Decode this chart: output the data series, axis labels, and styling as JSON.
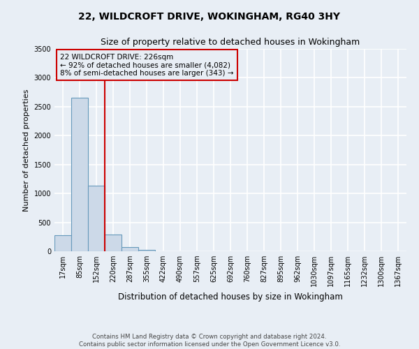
{
  "title": "22, WILDCROFT DRIVE, WOKINGHAM, RG40 3HY",
  "subtitle": "Size of property relative to detached houses in Wokingham",
  "bar_labels": [
    "17sqm",
    "85sqm",
    "152sqm",
    "220sqm",
    "287sqm",
    "355sqm",
    "422sqm",
    "490sqm",
    "557sqm",
    "625sqm",
    "692sqm",
    "760sqm",
    "827sqm",
    "895sqm",
    "962sqm",
    "1030sqm",
    "1097sqm",
    "1165sqm",
    "1232sqm",
    "1300sqm",
    "1367sqm"
  ],
  "bar_heights": [
    280,
    2650,
    1140,
    285,
    75,
    25,
    0,
    0,
    0,
    0,
    0,
    0,
    0,
    0,
    0,
    0,
    0,
    0,
    0,
    0,
    0
  ],
  "bar_color": "#ccd9e8",
  "bar_edge_color": "#6699bb",
  "background_color": "#e8eef5",
  "grid_color": "#ffffff",
  "ylabel": "Number of detached properties",
  "xlabel": "Distribution of detached houses by size in Wokingham",
  "ylim": [
    0,
    3500
  ],
  "yticks": [
    0,
    500,
    1000,
    1500,
    2000,
    2500,
    3000,
    3500
  ],
  "property_line_x": 3,
  "property_line_color": "#cc0000",
  "annotation_title": "22 WILDCROFT DRIVE: 226sqm",
  "annotation_line1": "← 92% of detached houses are smaller (4,082)",
  "annotation_line2": "8% of semi-detached houses are larger (343) →",
  "annotation_box_color": "#cc0000",
  "footer_line1": "Contains HM Land Registry data © Crown copyright and database right 2024.",
  "footer_line2": "Contains public sector information licensed under the Open Government Licence v3.0."
}
